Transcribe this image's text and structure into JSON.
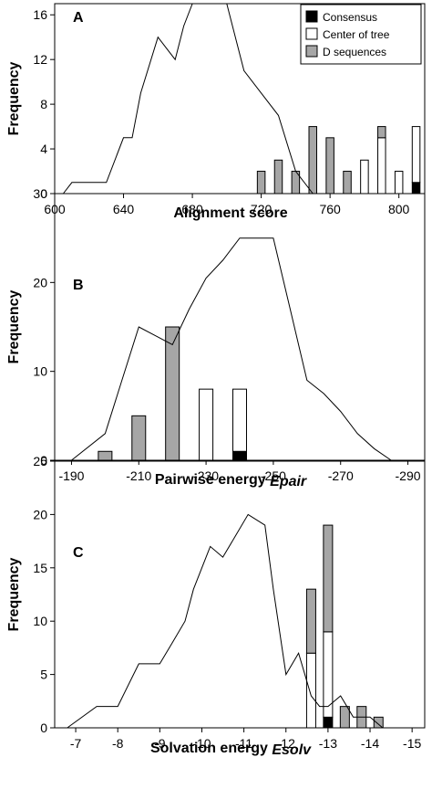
{
  "legend": [
    {
      "label": "Consensus",
      "color": "#000000"
    },
    {
      "label": "Center of tree",
      "color": "#ffffff"
    },
    {
      "label": "D sequences",
      "color": "#a6a6a6"
    }
  ],
  "chart_data": [
    {
      "panel": "A",
      "type": "bar+line",
      "xlabel": "Alignment score",
      "ylabel": "Frequency",
      "xlim": [
        600,
        815
      ],
      "ylim": [
        0,
        17
      ],
      "xticks": [
        600,
        640,
        680,
        720,
        760,
        800
      ],
      "yticks": [
        0,
        4,
        8,
        12,
        16
      ],
      "reversed_x": false,
      "line": {
        "x": [
          605,
          610,
          630,
          640,
          645,
          650,
          660,
          665,
          670,
          675,
          680,
          690,
          700,
          710,
          720,
          730,
          740,
          750
        ],
        "y": [
          0,
          1,
          1,
          5,
          5,
          9,
          14,
          13,
          12,
          15,
          17,
          17,
          17,
          11,
          9,
          7,
          2,
          0
        ]
      },
      "bars": [
        {
          "x": 720,
          "d": 2,
          "center": 0,
          "consensus": 0
        },
        {
          "x": 730,
          "d": 3,
          "center": 0,
          "consensus": 0
        },
        {
          "x": 740,
          "d": 2,
          "center": 0,
          "consensus": 0
        },
        {
          "x": 750,
          "d": 6,
          "center": 0,
          "consensus": 0
        },
        {
          "x": 760,
          "d": 5,
          "center": 0,
          "consensus": 0
        },
        {
          "x": 770,
          "d": 2,
          "center": 0,
          "consensus": 0
        },
        {
          "x": 780,
          "d": 0,
          "center": 3,
          "consensus": 0
        },
        {
          "x": 790,
          "d": 1,
          "center": 5,
          "consensus": 0
        },
        {
          "x": 800,
          "d": 0,
          "center": 2,
          "consensus": 0
        },
        {
          "x": 810,
          "d": 0,
          "center": 5,
          "consensus": 1
        }
      ]
    },
    {
      "panel": "B",
      "type": "bar+line",
      "xlabel": "Pairwise energy ",
      "xlabel_sub": "Epair",
      "ylabel": "Frequency",
      "xlim": [
        -185,
        -295
      ],
      "ylim": [
        0,
        30
      ],
      "xticks": [
        -190,
        -210,
        -230,
        -250,
        -270,
        -290
      ],
      "yticks": [
        0,
        10,
        20,
        30
      ],
      "reversed_x": true,
      "line": {
        "x": [
          -190,
          -200,
          -205,
          -210,
          -215,
          -220,
          -225,
          -230,
          -235,
          -240,
          -245,
          -250,
          -255,
          -260,
          -265,
          -270,
          -275,
          -280,
          -285
        ],
        "y": [
          0,
          3,
          9,
          15,
          14,
          13,
          17,
          20.5,
          22.5,
          25,
          25,
          25,
          17,
          9,
          7.5,
          5.5,
          3,
          1.3,
          0
        ]
      },
      "bars": [
        {
          "x": -200,
          "d": 1,
          "center": 0,
          "consensus": 0
        },
        {
          "x": -210,
          "d": 5,
          "center": 0,
          "consensus": 0
        },
        {
          "x": -220,
          "d": 15,
          "center": 0,
          "consensus": 0
        },
        {
          "x": -230,
          "d": 0,
          "center": 8,
          "consensus": 0
        },
        {
          "x": -240,
          "d": 0,
          "center": 7,
          "consensus": 1
        }
      ]
    },
    {
      "panel": "C",
      "type": "bar+line",
      "xlabel": "Solvation energy ",
      "xlabel_sub": "Esolv",
      "ylabel": "Frequency",
      "xlim": [
        -6.5,
        -15.3
      ],
      "ylim": [
        0,
        25
      ],
      "xticks": [
        -7,
        -8,
        -9,
        -10,
        -11,
        -12,
        -13,
        -14,
        -15
      ],
      "yticks": [
        0,
        5,
        10,
        15,
        20,
        25
      ],
      "reversed_x": true,
      "line": {
        "x": [
          -6.8,
          -7.5,
          -8.0,
          -8.5,
          -9.0,
          -9.3,
          -9.6,
          -9.8,
          -10.0,
          -10.2,
          -10.5,
          -10.8,
          -11.1,
          -11.5,
          -11.7,
          -12.0,
          -12.3,
          -12.6,
          -12.8,
          -13.0,
          -13.3,
          -13.6,
          -14.0,
          -14.3,
          -14.6,
          -15.0
        ],
        "y": [
          0,
          2,
          2,
          6,
          6,
          8,
          10,
          13,
          15,
          17,
          16,
          18,
          20,
          19,
          13,
          5,
          7,
          3,
          2,
          2,
          3,
          1,
          1,
          0,
          0,
          0
        ]
      },
      "bars": [
        {
          "x": -12.6,
          "d": 6,
          "center": 7,
          "consensus": 0
        },
        {
          "x": -13.0,
          "d": 10,
          "center": 8,
          "consensus": 1
        },
        {
          "x": -13.4,
          "d": 2,
          "center": 0,
          "consensus": 0
        },
        {
          "x": -13.8,
          "d": 2,
          "center": 0,
          "consensus": 0
        },
        {
          "x": -14.2,
          "d": 1,
          "center": 0,
          "consensus": 0
        }
      ]
    }
  ]
}
